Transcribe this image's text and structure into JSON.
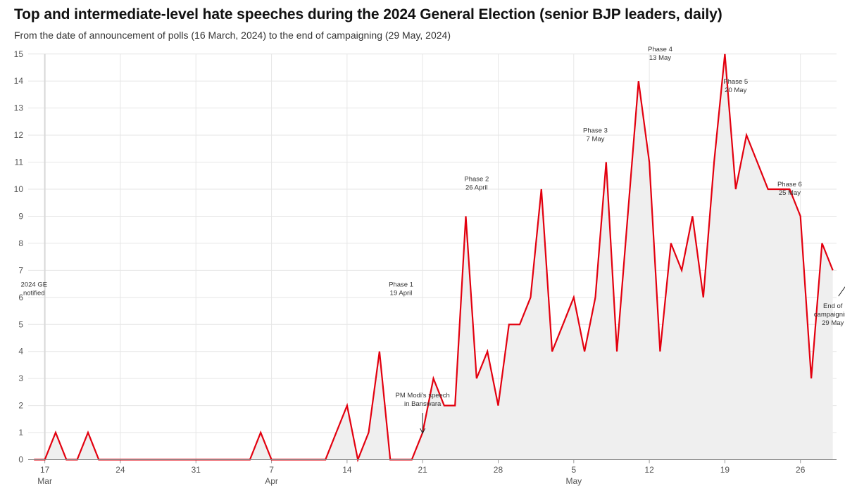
{
  "header": {
    "title": "Top and intermediate-level hate speeches during the 2024 General Election (senior BJP leaders, daily)",
    "subtitle": "From the date of announcement of polls (16 March, 2024) to the end of campaigning (29 May, 2024)"
  },
  "chart_data": {
    "type": "area",
    "title": "Top and intermediate-level hate speeches during the 2024 General Election (senior BJP leaders, daily)",
    "subtitle": "From the date of announcement of polls (16 March, 2024) to the end of campaigning (29 May, 2024)",
    "xlabel": "",
    "ylabel": "",
    "ylim": [
      0,
      15
    ],
    "grid": true,
    "x_start": "2024-03-16",
    "x_end": "2024-05-29",
    "x": [
      "2024-03-16",
      "2024-03-17",
      "2024-03-18",
      "2024-03-19",
      "2024-03-20",
      "2024-03-21",
      "2024-03-22",
      "2024-03-23",
      "2024-03-24",
      "2024-03-25",
      "2024-03-26",
      "2024-03-27",
      "2024-03-28",
      "2024-03-29",
      "2024-03-30",
      "2024-03-31",
      "2024-04-01",
      "2024-04-02",
      "2024-04-03",
      "2024-04-04",
      "2024-04-05",
      "2024-04-06",
      "2024-04-07",
      "2024-04-08",
      "2024-04-09",
      "2024-04-10",
      "2024-04-11",
      "2024-04-12",
      "2024-04-13",
      "2024-04-14",
      "2024-04-15",
      "2024-04-16",
      "2024-04-17",
      "2024-04-18",
      "2024-04-19",
      "2024-04-20",
      "2024-04-21",
      "2024-04-22",
      "2024-04-23",
      "2024-04-24",
      "2024-04-25",
      "2024-04-26",
      "2024-04-27",
      "2024-04-28",
      "2024-04-29",
      "2024-04-30",
      "2024-05-01",
      "2024-05-02",
      "2024-05-03",
      "2024-05-04",
      "2024-05-05",
      "2024-05-06",
      "2024-05-07",
      "2024-05-08",
      "2024-05-09",
      "2024-05-10",
      "2024-05-11",
      "2024-05-12",
      "2024-05-13",
      "2024-05-14",
      "2024-05-15",
      "2024-05-16",
      "2024-05-17",
      "2024-05-18",
      "2024-05-19",
      "2024-05-20",
      "2024-05-21",
      "2024-05-22",
      "2024-05-23",
      "2024-05-24",
      "2024-05-25",
      "2024-05-26",
      "2024-05-27",
      "2024-05-28",
      "2024-05-29"
    ],
    "series": [
      {
        "color": "#e3000f",
        "fill": "#efefef",
        "values": [
          0,
          0,
          1,
          0,
          0,
          1,
          0,
          0,
          0,
          0,
          0,
          0,
          0,
          0,
          0,
          0,
          0,
          0,
          0,
          0,
          0,
          1,
          0,
          0,
          0,
          0,
          0,
          0,
          1,
          2,
          0,
          1,
          4,
          0,
          0,
          0,
          1,
          3,
          2,
          2,
          9,
          3,
          4,
          2,
          5,
          5,
          6,
          10,
          4,
          5,
          6,
          4,
          6,
          11,
          4,
          9,
          14,
          11,
          4,
          8,
          7,
          9,
          6,
          11,
          15,
          10,
          12,
          11,
          10,
          10,
          10,
          9,
          3,
          8,
          7
        ]
      }
    ],
    "y_ticks": [
      "0",
      "1",
      "2",
      "3",
      "4",
      "5",
      "6",
      "7",
      "8",
      "9",
      "10",
      "11",
      "12",
      "13",
      "14",
      "15"
    ],
    "x_ticks": [
      {
        "date": "2024-03-17",
        "label": "17",
        "sublabel": "Mar"
      },
      {
        "date": "2024-03-24",
        "label": "24",
        "sublabel": ""
      },
      {
        "date": "2024-03-31",
        "label": "31",
        "sublabel": ""
      },
      {
        "date": "2024-04-07",
        "label": "7",
        "sublabel": "Apr"
      },
      {
        "date": "2024-04-14",
        "label": "14",
        "sublabel": ""
      },
      {
        "date": "2024-04-21",
        "label": "21",
        "sublabel": ""
      },
      {
        "date": "2024-04-28",
        "label": "28",
        "sublabel": ""
      },
      {
        "date": "2024-05-05",
        "label": "5",
        "sublabel": "May"
      },
      {
        "date": "2024-05-12",
        "label": "12",
        "sublabel": ""
      },
      {
        "date": "2024-05-19",
        "label": "19",
        "sublabel": ""
      },
      {
        "date": "2024-05-26",
        "label": "26",
        "sublabel": ""
      }
    ],
    "annotations": [
      {
        "lines": [
          "2024 GE",
          "notified"
        ],
        "date": "2024-03-16",
        "value": 6.4
      },
      {
        "lines": [
          "Phase 1",
          "19 April"
        ],
        "date": "2024-04-19",
        "value": 6.4
      },
      {
        "lines": [
          "PM Modi's speech",
          "in Banswara"
        ],
        "date": "2024-04-21",
        "value": 2.3,
        "arrow": "down"
      },
      {
        "lines": [
          "Phase 2",
          "26 April"
        ],
        "date": "2024-04-26",
        "value": 10.3
      },
      {
        "lines": [
          "Phase 3",
          "7 May"
        ],
        "date": "2024-05-07",
        "value": 12.1
      },
      {
        "lines": [
          "Phase 4",
          "13 May"
        ],
        "date": "2024-05-13",
        "value": 15.1
      },
      {
        "lines": [
          "Phase 5",
          "20 May"
        ],
        "date": "2024-05-20",
        "value": 13.9
      },
      {
        "lines": [
          "Phase 6",
          "25 May"
        ],
        "date": "2024-05-25",
        "value": 10.1
      },
      {
        "lines": [
          "End of",
          "campaigning",
          "29 May"
        ],
        "date": "2024-05-29",
        "value": 5.6,
        "arrow": "up-right"
      }
    ],
    "reference_lines": [
      {
        "date": "2024-03-17",
        "color": "#d8d8d8"
      },
      {
        "date": "2024-05-19",
        "color": "#d8d8d8"
      }
    ]
  }
}
